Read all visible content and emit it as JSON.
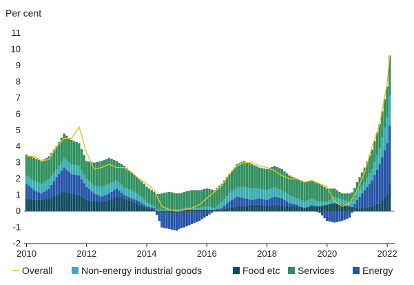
{
  "chart_data": {
    "type": "bar",
    "stacked": true,
    "title": "",
    "ylabel": "Per cent",
    "xlabel": "",
    "ylim": [
      -2,
      11
    ],
    "grid": false,
    "legend_position": "bottom",
    "x_range": [
      2009.92,
      2022.25
    ],
    "x_ticks": [
      {
        "value": 2010,
        "label": "2010"
      },
      {
        "value": 2012,
        "label": "2012"
      },
      {
        "value": 2014,
        "label": "2014"
      },
      {
        "value": 2016,
        "label": "2016"
      },
      {
        "value": 2018,
        "label": "2018"
      },
      {
        "value": 2020,
        "label": "2020"
      },
      {
        "value": 2022,
        "label": "2022"
      }
    ],
    "y_ticks": [
      -2,
      -1,
      0,
      1,
      2,
      3,
      4,
      5,
      6,
      7,
      8,
      9,
      10,
      11
    ],
    "colors": {
      "overall": "#e8c21a",
      "non_energy": "#3aacb3",
      "food": "#0f4a5e",
      "services": "#2f8f5f",
      "energy": "#2553a8"
    },
    "legend": [
      {
        "key": "overall",
        "label": "Overall",
        "kind": "line"
      },
      {
        "key": "non_energy",
        "label": "Non-energy industrial goods",
        "kind": "bar"
      },
      {
        "key": "food",
        "label": "Food etc",
        "kind": "bar"
      },
      {
        "key": "services",
        "label": "Services",
        "kind": "bar"
      },
      {
        "key": "energy",
        "label": "Energy",
        "kind": "bar"
      }
    ],
    "anchors": {
      "x": [
        2010.0,
        2010.25,
        2010.5,
        2010.75,
        2011.0,
        2011.25,
        2011.5,
        2011.75,
        2012.0,
        2012.25,
        2012.5,
        2012.75,
        2013.0,
        2013.25,
        2013.5,
        2013.75,
        2014.0,
        2014.25,
        2014.5,
        2014.75,
        2015.0,
        2015.25,
        2015.5,
        2015.75,
        2016.0,
        2016.25,
        2016.5,
        2016.75,
        2017.0,
        2017.25,
        2017.5,
        2017.75,
        2018.0,
        2018.25,
        2018.5,
        2018.75,
        2019.0,
        2019.25,
        2019.5,
        2019.75,
        2020.0,
        2020.25,
        2020.5,
        2020.75,
        2021.0,
        2021.25,
        2021.5,
        2021.75,
        2022.0,
        2022.1
      ],
      "food": [
        0.8,
        0.7,
        0.7,
        0.8,
        1.0,
        1.2,
        1.1,
        1.0,
        0.7,
        0.6,
        0.6,
        0.7,
        0.9,
        0.8,
        0.6,
        0.4,
        0.2,
        0.1,
        -0.1,
        -0.1,
        -0.1,
        0.1,
        0.1,
        0.1,
        0.1,
        0.1,
        0.1,
        0.2,
        0.3,
        0.3,
        0.4,
        0.4,
        0.3,
        0.4,
        0.3,
        0.3,
        0.3,
        0.2,
        0.3,
        0.3,
        0.4,
        0.5,
        0.4,
        0.3,
        0.2,
        0.2,
        0.3,
        0.5,
        1.0,
        1.8
      ],
      "energy": [
        0.9,
        0.6,
        0.4,
        0.6,
        1.1,
        1.5,
        1.2,
        1.2,
        0.8,
        0.5,
        0.3,
        0.4,
        0.5,
        0.2,
        0.2,
        0.2,
        0.1,
        0.1,
        -0.9,
        -1.0,
        -1.1,
        -1.0,
        -0.8,
        -0.6,
        -0.3,
        0.0,
        0.1,
        0.4,
        0.6,
        0.5,
        0.3,
        0.4,
        0.4,
        0.5,
        0.5,
        0.2,
        0.1,
        0.0,
        0.1,
        -0.1,
        -0.6,
        -0.7,
        -0.6,
        -0.4,
        0.5,
        1.1,
        1.6,
        2.4,
        3.2,
        3.7
      ],
      "non_energy": [
        0.5,
        0.6,
        0.6,
        0.6,
        0.5,
        0.6,
        0.6,
        0.6,
        0.5,
        0.5,
        0.6,
        0.6,
        0.5,
        0.5,
        0.5,
        0.4,
        0.3,
        0.1,
        0.1,
        0.1,
        0.1,
        0.1,
        0.1,
        0.1,
        0.2,
        0.1,
        0.4,
        0.5,
        0.6,
        0.7,
        0.7,
        0.6,
        0.6,
        0.6,
        0.5,
        0.5,
        0.4,
        0.4,
        0.4,
        0.3,
        0.2,
        0.4,
        0.3,
        0.3,
        0.5,
        0.5,
        0.7,
        1.0,
        1.6,
        1.9
      ],
      "services": [
        1.3,
        1.4,
        1.4,
        1.4,
        1.4,
        1.5,
        1.5,
        1.4,
        1.1,
        1.4,
        1.6,
        1.6,
        1.2,
        1.3,
        1.1,
        1.0,
        0.9,
        0.9,
        1.0,
        1.1,
        1.0,
        1.0,
        1.1,
        1.1,
        1.1,
        1.1,
        1.1,
        1.2,
        1.4,
        1.6,
        1.5,
        1.3,
        1.3,
        1.3,
        1.3,
        1.2,
        1.2,
        1.2,
        1.1,
        1.1,
        0.8,
        0.5,
        0.4,
        0.5,
        0.6,
        0.9,
        1.2,
        1.5,
        1.9,
        2.6
      ],
      "overall": [
        3.4,
        3.4,
        3.1,
        3.2,
        4.0,
        4.5,
        4.5,
        5.2,
        3.6,
        2.6,
        2.7,
        2.9,
        2.7,
        2.7,
        2.4,
        2.0,
        1.7,
        1.3,
        0.3,
        0.1,
        0.0,
        0.1,
        0.2,
        0.4,
        0.8,
        1.2,
        1.6,
        2.3,
        2.8,
        3.0,
        3.0,
        2.8,
        2.7,
        2.5,
        2.2,
        2.0,
        2.0,
        1.8,
        1.9,
        1.7,
        1.5,
        0.6,
        0.3,
        0.5,
        1.3,
        2.4,
        4.0,
        5.4,
        7.9,
        10.0
      ]
    }
  }
}
